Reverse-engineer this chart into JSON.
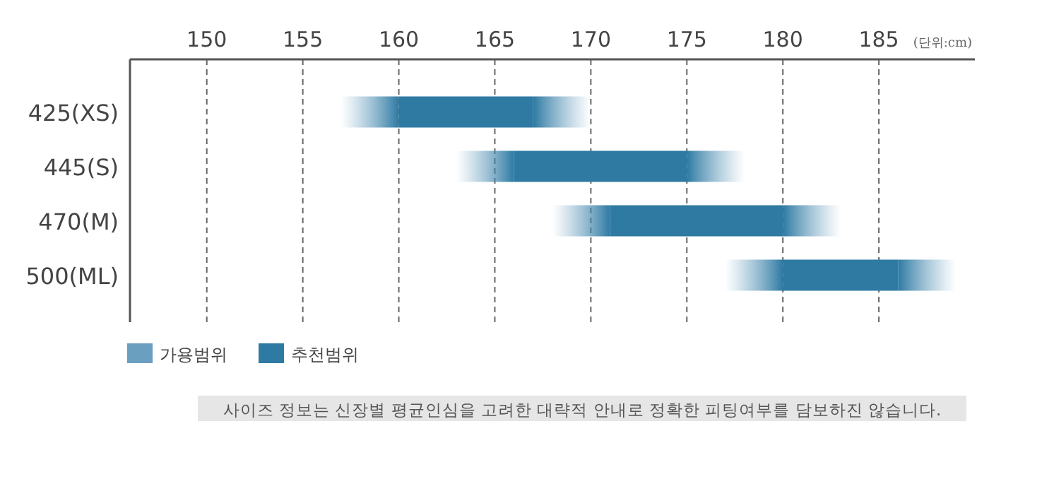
{
  "chart_data": {
    "type": "bar",
    "orientation": "horizontal",
    "xlabel": "(단위:cm)",
    "categories": [
      "425(XS)",
      "445(S)",
      "470(M)",
      "500(ML)"
    ],
    "series": [
      {
        "name": "가용범위",
        "color": "#6a9fc0",
        "base": [
          157,
          163,
          168,
          177
        ],
        "values": [
          3,
          3,
          3,
          3
        ]
      },
      {
        "name": "추천범위",
        "color": "#2e7aa3",
        "base": [
          160,
          166,
          171,
          180
        ],
        "values": [
          7,
          9,
          9,
          6
        ]
      },
      {
        "color": "#6a9fc0",
        "base": [
          167,
          175,
          180,
          186
        ],
        "values": [
          3,
          3,
          3,
          3
        ]
      }
    ],
    "xlim": [
      146,
      190
    ],
    "xticks": [
      150,
      155,
      160,
      165,
      170,
      175,
      180,
      185
    ],
    "grid": "x",
    "legend": "bottom left",
    "annotations": [
      "사이즈 정보는 신장별 평균인심을 고려한 대략적 안내로 정확한 피팅여부를 담보하진 않습니다."
    ]
  }
}
